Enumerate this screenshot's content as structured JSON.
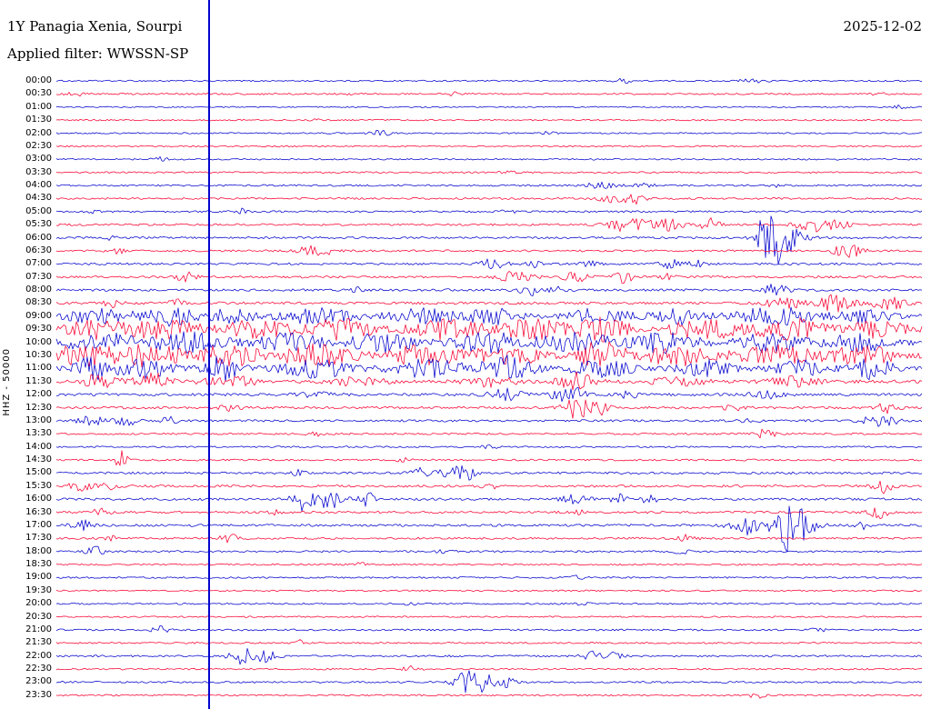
{
  "header": {
    "station": "1Y Panagia Xenia, Sourpi",
    "filter_label": "Applied filter: WWSSN-SP",
    "date": "2025-12-02"
  },
  "axis": {
    "channel_label": "HHZ - 50000"
  },
  "colors": {
    "blue": "#0000cd",
    "red": "#f80031",
    "marker": "#0000cd",
    "text": "#000000",
    "background": "#ffffff"
  },
  "chart_data": {
    "type": "line",
    "subtype": "helicorder-seismogram",
    "title": "1Y Panagia Xenia, Sourpi — HHZ — 2025-12-02 — WWSSN-SP filtered",
    "row_duration_minutes": 30,
    "amplitude_scale": 50000,
    "marker_x_fraction": 0.1765,
    "legend": "alternating blue/red 30-minute trace lines, 00:00 to 23:30",
    "rows": [
      {
        "time": "00:00",
        "color": "blue",
        "base": 0.8,
        "bursts": [
          [
            0.655,
            0.01,
            2.5
          ],
          [
            0.805,
            0.015,
            2.5
          ]
        ]
      },
      {
        "time": "00:30",
        "color": "red",
        "base": 0.9,
        "bursts": [
          [
            0.02,
            0.01,
            3
          ],
          [
            0.34,
            0.01,
            2
          ],
          [
            0.46,
            0.01,
            2
          ],
          [
            0.95,
            0.008,
            2
          ]
        ]
      },
      {
        "time": "01:00",
        "color": "blue",
        "base": 0.7,
        "bursts": [
          [
            0.975,
            0.008,
            2.5
          ]
        ]
      },
      {
        "time": "01:30",
        "color": "red",
        "base": 0.8,
        "bursts": [
          [
            0.3,
            0.008,
            2
          ]
        ]
      },
      {
        "time": "02:00",
        "color": "blue",
        "base": 0.8,
        "bursts": [
          [
            0.375,
            0.012,
            3
          ],
          [
            0.57,
            0.008,
            2
          ]
        ]
      },
      {
        "time": "02:30",
        "color": "red",
        "base": 0.8,
        "bursts": []
      },
      {
        "time": "03:00",
        "color": "blue",
        "base": 0.8,
        "bursts": [
          [
            0.12,
            0.008,
            3
          ]
        ]
      },
      {
        "time": "03:30",
        "color": "red",
        "base": 0.9,
        "bursts": [
          [
            0.52,
            0.01,
            1.5
          ]
        ]
      },
      {
        "time": "04:00",
        "color": "blue",
        "base": 1.0,
        "bursts": [
          [
            0.63,
            0.02,
            3
          ],
          [
            0.68,
            0.01,
            2.5
          ],
          [
            0.83,
            0.01,
            2
          ]
        ]
      },
      {
        "time": "04:30",
        "color": "red",
        "base": 1.0,
        "bursts": [
          [
            0.645,
            0.02,
            4
          ],
          [
            0.67,
            0.01,
            5
          ]
        ]
      },
      {
        "time": "05:00",
        "color": "blue",
        "base": 1.0,
        "bursts": [
          [
            0.04,
            0.008,
            2
          ],
          [
            0.215,
            0.008,
            3
          ],
          [
            0.52,
            0.01,
            2
          ]
        ]
      },
      {
        "time": "05:30",
        "color": "red",
        "base": 1.1,
        "bursts": [
          [
            0.665,
            0.025,
            9
          ],
          [
            0.71,
            0.015,
            6
          ],
          [
            0.755,
            0.01,
            8
          ],
          [
            0.875,
            0.02,
            7
          ],
          [
            0.9,
            0.015,
            6
          ]
        ]
      },
      {
        "time": "06:00",
        "color": "blue",
        "base": 1.1,
        "bursts": [
          [
            0.825,
            0.012,
            42
          ],
          [
            0.84,
            0.022,
            16
          ],
          [
            0.06,
            0.01,
            2
          ]
        ]
      },
      {
        "time": "06:30",
        "color": "red",
        "base": 1.1,
        "bursts": [
          [
            0.3,
            0.018,
            8
          ],
          [
            0.915,
            0.015,
            9
          ],
          [
            0.07,
            0.01,
            3
          ]
        ]
      },
      {
        "time": "07:00",
        "color": "blue",
        "base": 1.2,
        "bursts": [
          [
            0.505,
            0.015,
            6
          ],
          [
            0.55,
            0.01,
            4
          ],
          [
            0.615,
            0.01,
            3
          ],
          [
            0.71,
            0.012,
            5
          ],
          [
            0.74,
            0.01,
            4
          ]
        ]
      },
      {
        "time": "07:30",
        "color": "red",
        "base": 1.2,
        "bursts": [
          [
            0.15,
            0.012,
            5
          ],
          [
            0.53,
            0.02,
            6
          ],
          [
            0.6,
            0.015,
            5
          ],
          [
            0.655,
            0.012,
            6
          ],
          [
            0.71,
            0.01,
            4
          ]
        ]
      },
      {
        "time": "08:00",
        "color": "blue",
        "base": 1.3,
        "bursts": [
          [
            0.345,
            0.01,
            3
          ],
          [
            0.545,
            0.015,
            6
          ],
          [
            0.58,
            0.01,
            4
          ],
          [
            0.83,
            0.015,
            6
          ]
        ]
      },
      {
        "time": "08:30",
        "color": "red",
        "base": 1.4,
        "bursts": [
          [
            0.065,
            0.01,
            4
          ],
          [
            0.135,
            0.01,
            5
          ],
          [
            0.84,
            0.02,
            8
          ],
          [
            0.9,
            0.02,
            9
          ],
          [
            0.96,
            0.02,
            8
          ]
        ]
      },
      {
        "time": "09:00",
        "color": "blue",
        "base": 2.2,
        "bursts": [
          [
            0.05,
            0.04,
            7
          ],
          [
            0.13,
            0.03,
            9
          ],
          [
            0.2,
            0.03,
            7
          ],
          [
            0.3,
            0.04,
            8
          ],
          [
            0.42,
            0.04,
            8
          ],
          [
            0.5,
            0.03,
            9
          ],
          [
            0.62,
            0.04,
            8
          ],
          [
            0.72,
            0.03,
            8
          ],
          [
            0.83,
            0.04,
            10
          ],
          [
            0.93,
            0.03,
            8
          ]
        ]
      },
      {
        "time": "09:30",
        "color": "red",
        "base": 2.5,
        "bursts": [
          [
            0.04,
            0.03,
            10
          ],
          [
            0.12,
            0.04,
            11
          ],
          [
            0.23,
            0.04,
            9
          ],
          [
            0.33,
            0.04,
            10
          ],
          [
            0.45,
            0.04,
            10
          ],
          [
            0.55,
            0.04,
            10
          ],
          [
            0.63,
            0.03,
            12
          ],
          [
            0.75,
            0.04,
            10
          ],
          [
            0.85,
            0.04,
            11
          ],
          [
            0.95,
            0.03,
            9
          ]
        ]
      },
      {
        "time": "10:00",
        "color": "blue",
        "base": 2.5,
        "bursts": [
          [
            0.05,
            0.04,
            10
          ],
          [
            0.15,
            0.04,
            10
          ],
          [
            0.27,
            0.04,
            9
          ],
          [
            0.38,
            0.04,
            10
          ],
          [
            0.5,
            0.04,
            10
          ],
          [
            0.6,
            0.04,
            9
          ],
          [
            0.7,
            0.04,
            10
          ],
          [
            0.82,
            0.04,
            9
          ],
          [
            0.93,
            0.04,
            9
          ]
        ]
      },
      {
        "time": "10:30",
        "color": "red",
        "base": 2.8,
        "bursts": [
          [
            0.03,
            0.03,
            11
          ],
          [
            0.1,
            0.04,
            12
          ],
          [
            0.2,
            0.04,
            10
          ],
          [
            0.3,
            0.04,
            11
          ],
          [
            0.42,
            0.04,
            11
          ],
          [
            0.52,
            0.04,
            10
          ],
          [
            0.63,
            0.025,
            16
          ],
          [
            0.72,
            0.04,
            10
          ],
          [
            0.83,
            0.04,
            10
          ],
          [
            0.93,
            0.04,
            10
          ]
        ]
      },
      {
        "time": "11:00",
        "color": "blue",
        "base": 2.4,
        "bursts": [
          [
            0.04,
            0.02,
            12
          ],
          [
            0.1,
            0.03,
            10
          ],
          [
            0.19,
            0.02,
            13
          ],
          [
            0.3,
            0.04,
            9
          ],
          [
            0.43,
            0.04,
            9
          ],
          [
            0.52,
            0.03,
            12
          ],
          [
            0.63,
            0.03,
            10
          ],
          [
            0.75,
            0.03,
            8
          ],
          [
            0.86,
            0.03,
            8
          ],
          [
            0.945,
            0.02,
            12
          ]
        ]
      },
      {
        "time": "11:30",
        "color": "red",
        "base": 1.8,
        "bursts": [
          [
            0.05,
            0.02,
            8
          ],
          [
            0.11,
            0.02,
            9
          ],
          [
            0.2,
            0.03,
            6
          ],
          [
            0.35,
            0.03,
            5
          ],
          [
            0.5,
            0.03,
            5
          ],
          [
            0.6,
            0.02,
            10
          ],
          [
            0.72,
            0.03,
            5
          ],
          [
            0.85,
            0.03,
            5
          ]
        ]
      },
      {
        "time": "12:00",
        "color": "blue",
        "base": 1.5,
        "bursts": [
          [
            0.3,
            0.02,
            3
          ],
          [
            0.52,
            0.02,
            6
          ],
          [
            0.58,
            0.01,
            5
          ],
          [
            0.6,
            0.015,
            7
          ],
          [
            0.66,
            0.01,
            5
          ],
          [
            0.82,
            0.02,
            4
          ]
        ]
      },
      {
        "time": "12:30",
        "color": "red",
        "base": 1.3,
        "bursts": [
          [
            0.2,
            0.015,
            3
          ],
          [
            0.6,
            0.015,
            14
          ],
          [
            0.63,
            0.01,
            8
          ],
          [
            0.78,
            0.015,
            3
          ],
          [
            0.96,
            0.012,
            6
          ]
        ]
      },
      {
        "time": "13:00",
        "color": "blue",
        "base": 1.2,
        "bursts": [
          [
            0.04,
            0.015,
            5
          ],
          [
            0.08,
            0.012,
            6
          ],
          [
            0.13,
            0.01,
            4
          ],
          [
            0.8,
            0.01,
            3
          ],
          [
            0.945,
            0.015,
            6
          ],
          [
            0.97,
            0.01,
            5
          ]
        ]
      },
      {
        "time": "13:30",
        "color": "red",
        "base": 1.0,
        "bursts": [
          [
            0.3,
            0.01,
            2
          ],
          [
            0.82,
            0.01,
            6
          ]
        ]
      },
      {
        "time": "14:00",
        "color": "blue",
        "base": 0.9,
        "bursts": [
          [
            0.5,
            0.01,
            2
          ]
        ]
      },
      {
        "time": "14:30",
        "color": "red",
        "base": 1.0,
        "bursts": [
          [
            0.075,
            0.006,
            14
          ],
          [
            0.4,
            0.01,
            2
          ]
        ]
      },
      {
        "time": "15:00",
        "color": "blue",
        "base": 1.2,
        "bursts": [
          [
            0.28,
            0.01,
            3
          ],
          [
            0.42,
            0.012,
            8
          ],
          [
            0.455,
            0.012,
            10
          ],
          [
            0.475,
            0.01,
            7
          ]
        ]
      },
      {
        "time": "15:30",
        "color": "red",
        "base": 1.3,
        "bursts": [
          [
            0.03,
            0.015,
            5
          ],
          [
            0.06,
            0.012,
            4
          ],
          [
            0.5,
            0.01,
            3
          ],
          [
            0.955,
            0.012,
            7
          ]
        ]
      },
      {
        "time": "16:00",
        "color": "blue",
        "base": 1.3,
        "bursts": [
          [
            0.285,
            0.012,
            12
          ],
          [
            0.315,
            0.015,
            10
          ],
          [
            0.36,
            0.012,
            8
          ],
          [
            0.6,
            0.015,
            6
          ],
          [
            0.65,
            0.01,
            5
          ],
          [
            0.685,
            0.01,
            4
          ]
        ]
      },
      {
        "time": "16:30",
        "color": "red",
        "base": 1.2,
        "bursts": [
          [
            0.05,
            0.01,
            4
          ],
          [
            0.25,
            0.01,
            3
          ],
          [
            0.6,
            0.01,
            3
          ],
          [
            0.95,
            0.012,
            6
          ]
        ]
      },
      {
        "time": "17:00",
        "color": "blue",
        "base": 1.3,
        "bursts": [
          [
            0.03,
            0.012,
            7
          ],
          [
            0.8,
            0.02,
            10
          ],
          [
            0.845,
            0.015,
            22
          ],
          [
            0.86,
            0.02,
            12
          ],
          [
            0.93,
            0.01,
            4
          ]
        ]
      },
      {
        "time": "17:30",
        "color": "red",
        "base": 1.1,
        "bursts": [
          [
            0.06,
            0.01,
            3
          ],
          [
            0.2,
            0.012,
            5
          ],
          [
            0.73,
            0.012,
            4
          ]
        ]
      },
      {
        "time": "18:00",
        "color": "blue",
        "base": 1.0,
        "bursts": [
          [
            0.045,
            0.01,
            6
          ],
          [
            0.45,
            0.01,
            3
          ],
          [
            0.72,
            0.01,
            3
          ]
        ]
      },
      {
        "time": "18:30",
        "color": "red",
        "base": 0.9,
        "bursts": [
          [
            0.35,
            0.01,
            2
          ]
        ]
      },
      {
        "time": "19:00",
        "color": "blue",
        "base": 0.9,
        "bursts": [
          [
            0.6,
            0.01,
            2
          ]
        ]
      },
      {
        "time": "19:30",
        "color": "red",
        "base": 0.8,
        "bursts": []
      },
      {
        "time": "20:00",
        "color": "blue",
        "base": 0.9,
        "bursts": [
          [
            0.41,
            0.008,
            2
          ],
          [
            0.61,
            0.008,
            2
          ]
        ]
      },
      {
        "time": "20:30",
        "color": "red",
        "base": 0.8,
        "bursts": []
      },
      {
        "time": "21:00",
        "color": "blue",
        "base": 1.0,
        "bursts": [
          [
            0.12,
            0.01,
            4
          ],
          [
            0.88,
            0.01,
            3
          ]
        ]
      },
      {
        "time": "21:30",
        "color": "red",
        "base": 0.9,
        "bursts": [
          [
            0.28,
            0.008,
            3
          ]
        ]
      },
      {
        "time": "22:00",
        "color": "blue",
        "base": 1.0,
        "bursts": [
          [
            0.215,
            0.015,
            9
          ],
          [
            0.245,
            0.012,
            7
          ],
          [
            0.62,
            0.012,
            5
          ],
          [
            0.645,
            0.01,
            4
          ]
        ]
      },
      {
        "time": "22:30",
        "color": "red",
        "base": 0.9,
        "bursts": [
          [
            0.41,
            0.01,
            3
          ]
        ]
      },
      {
        "time": "23:00",
        "color": "blue",
        "base": 1.0,
        "bursts": [
          [
            0.475,
            0.015,
            12
          ],
          [
            0.495,
            0.012,
            9
          ],
          [
            0.52,
            0.01,
            5
          ]
        ]
      },
      {
        "time": "23:30",
        "color": "red",
        "base": 0.9,
        "bursts": [
          [
            0.81,
            0.01,
            3
          ]
        ]
      }
    ]
  }
}
